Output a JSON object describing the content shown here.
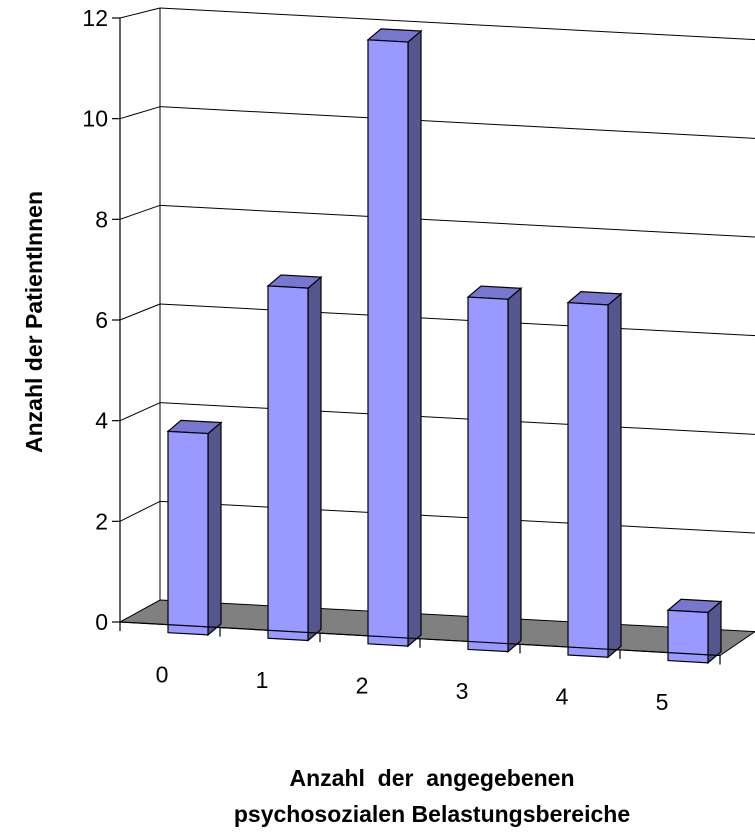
{
  "chart_data": {
    "type": "bar",
    "categories": [
      "0",
      "1",
      "2",
      "3",
      "4",
      "5"
    ],
    "values": [
      4,
      7,
      12,
      7,
      7,
      1
    ],
    "xlabel": [
      "Anzahl  der  angegebenen",
      "psychosozialen Belastungsbereiche"
    ],
    "ylabel": "Anzahl der PatientInnen",
    "ylim": [
      0,
      12
    ],
    "yticks": [
      "0",
      "2",
      "4",
      "6",
      "8",
      "10",
      "12"
    ],
    "grid": true,
    "legend": "none",
    "style": "3d-column",
    "colors": {
      "bar_front": "#9999ff",
      "bar_side": "#56568f",
      "bar_top": "#7777d0",
      "floor": "#808080",
      "grid": "#000000"
    }
  }
}
